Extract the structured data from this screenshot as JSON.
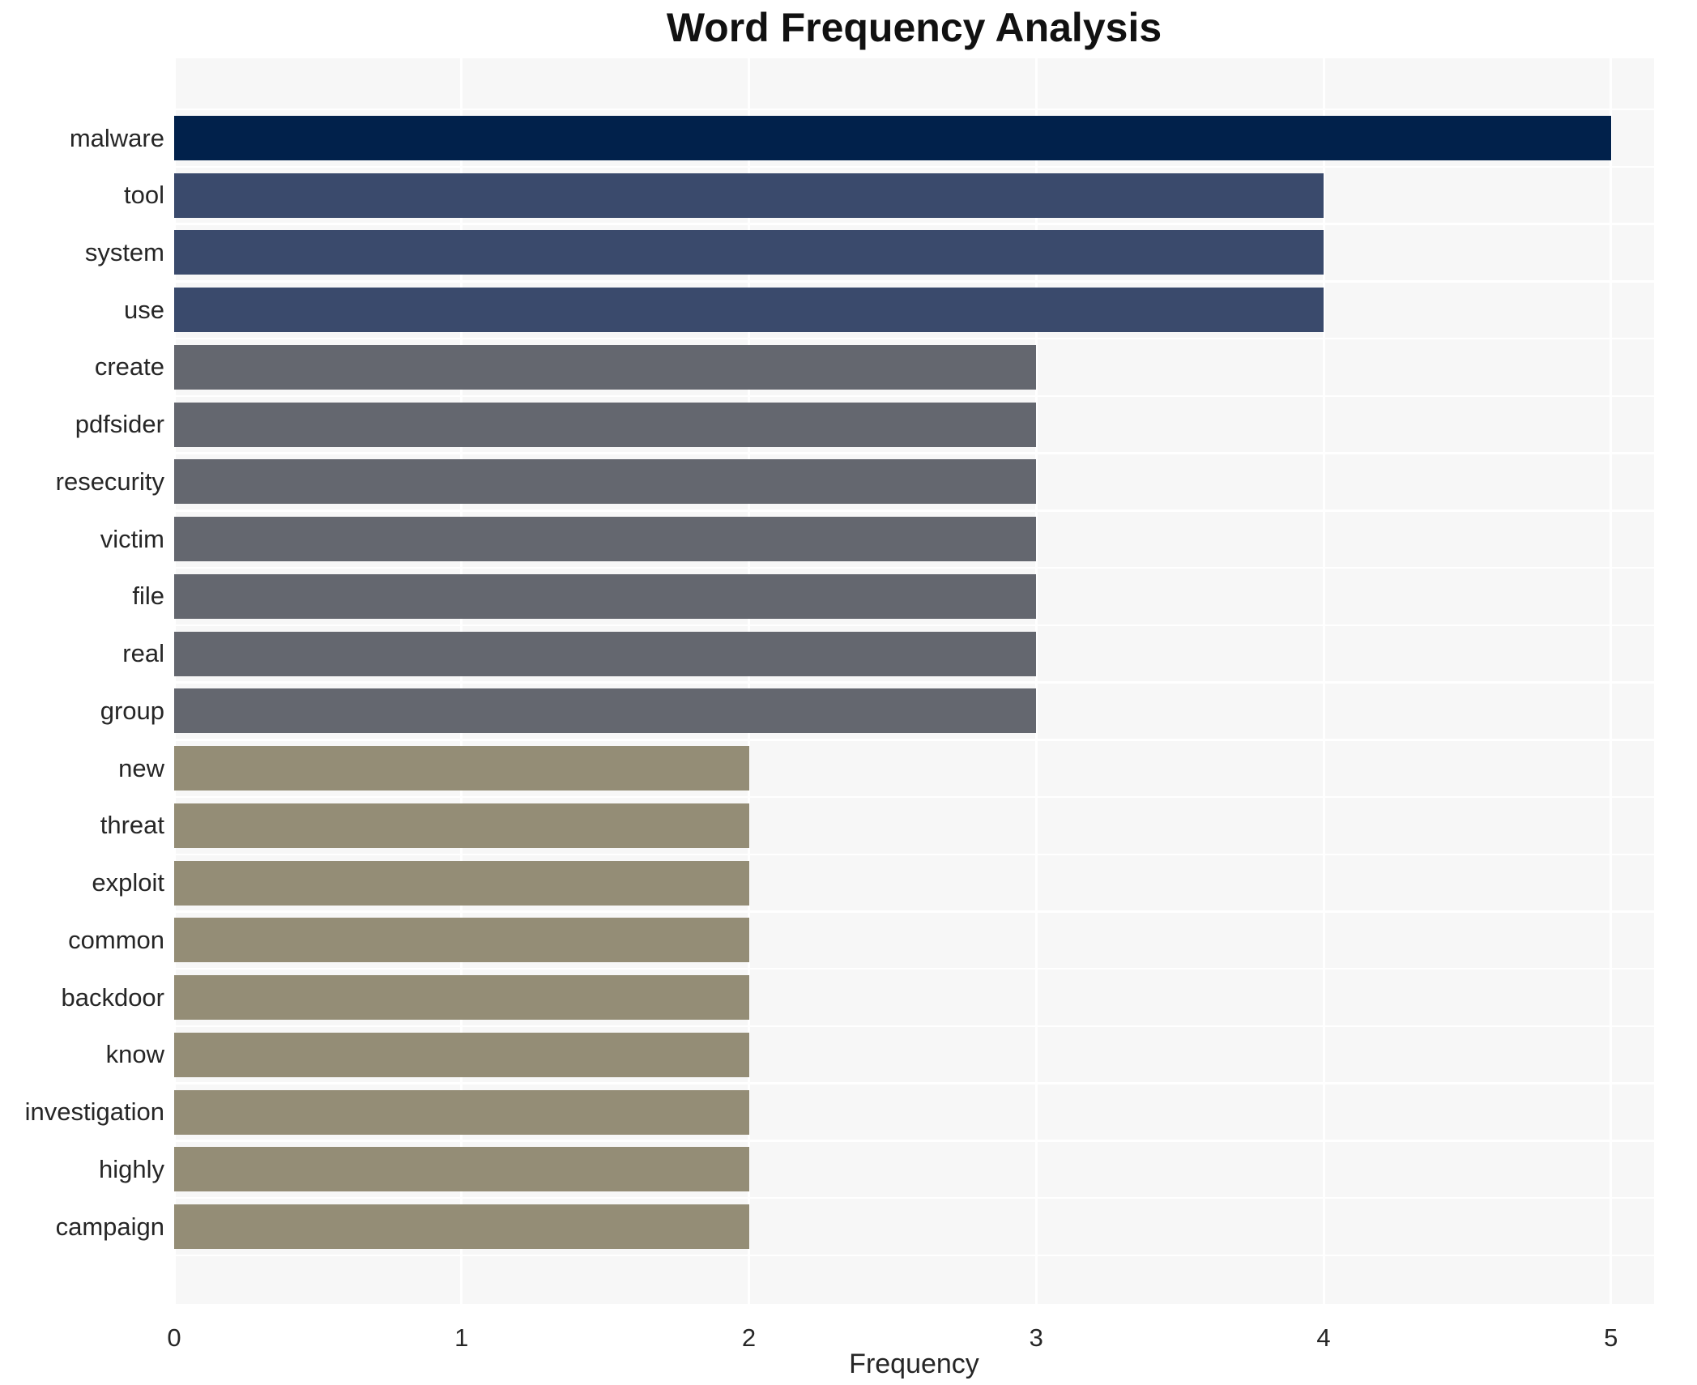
{
  "chart_data": {
    "type": "bar",
    "orientation": "horizontal",
    "title": "Word Frequency Analysis",
    "xlabel": "Frequency",
    "ylabel": "",
    "categories": [
      "malware",
      "tool",
      "system",
      "use",
      "create",
      "pdfsider",
      "resecurity",
      "victim",
      "file",
      "real",
      "group",
      "new",
      "threat",
      "exploit",
      "common",
      "backdoor",
      "know",
      "investigation",
      "highly",
      "campaign"
    ],
    "values": [
      5,
      4,
      4,
      4,
      3,
      3,
      3,
      3,
      3,
      3,
      3,
      2,
      2,
      2,
      2,
      2,
      2,
      2,
      2,
      2
    ],
    "xticks": [
      0,
      1,
      2,
      3,
      4,
      5
    ],
    "xlim": [
      0,
      5.15
    ],
    "grid": true,
    "legend": false,
    "colors_by_value": {
      "5": "#01214b",
      "4": "#3a4a6c",
      "3": "#64676f",
      "2": "#948d76"
    },
    "plot_background": "#f7f7f7",
    "grid_color": "#ffffff",
    "title_color": "#111111",
    "label_color": "#262626"
  }
}
